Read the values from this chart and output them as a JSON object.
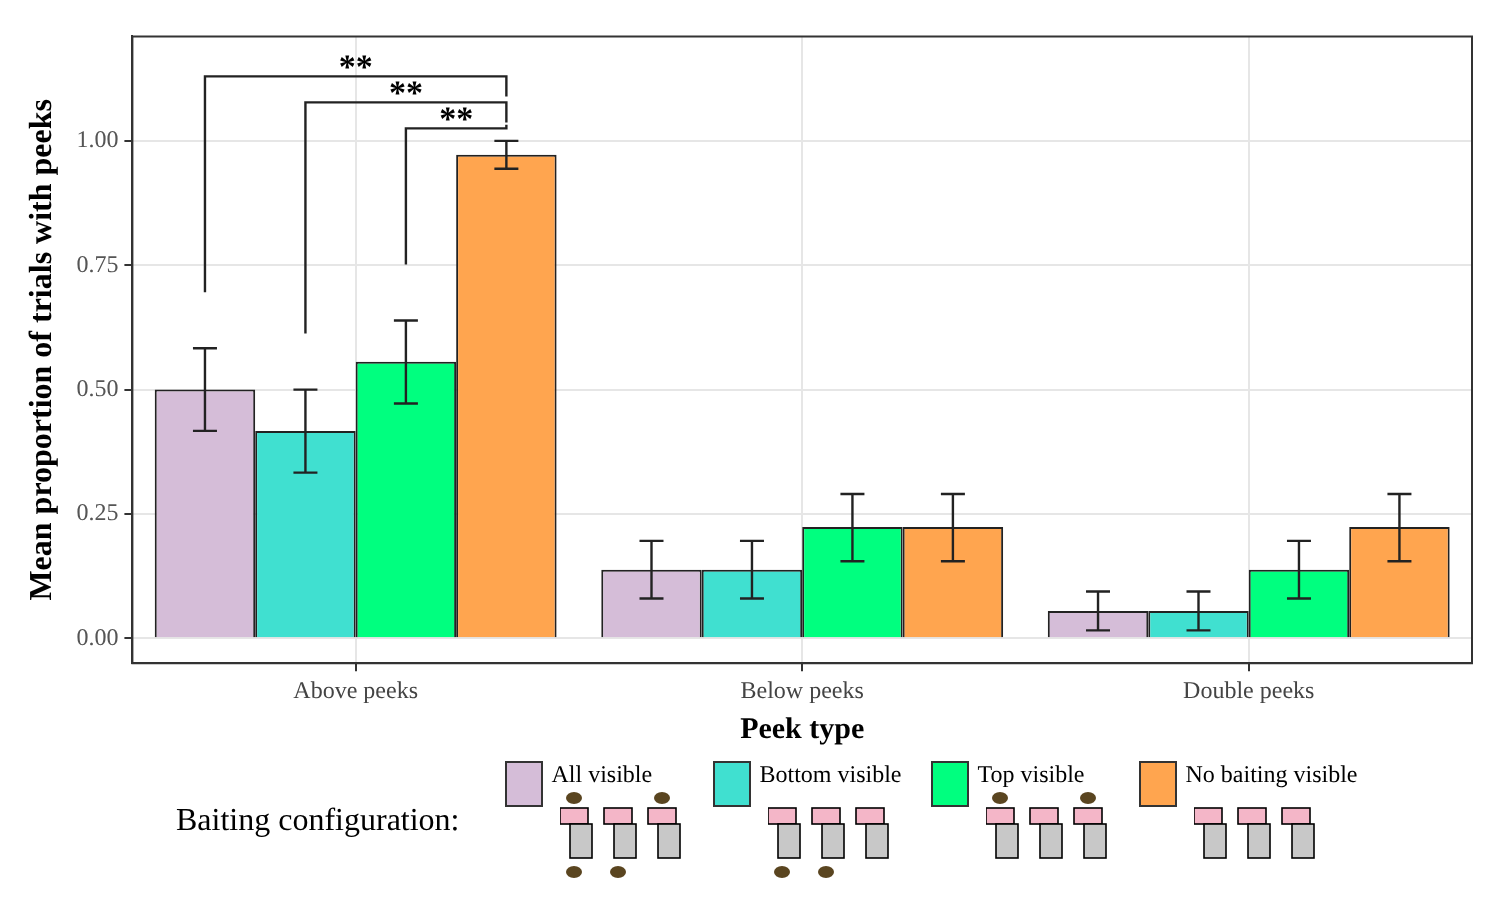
{
  "chart_data": {
    "type": "bar",
    "xlabel": "Peek type",
    "ylabel": "Mean proportion of trials with peeks",
    "legend_title": "Baiting configuration:",
    "categories": [
      "Above peeks",
      "Below peeks",
      "Double peeks"
    ],
    "series": [
      {
        "name": "All visible",
        "color": "#d5bdd8",
        "values": [
          0.5,
          0.138,
          0.055
        ],
        "errors": [
          [
            0.417,
            0.583
          ],
          [
            0.08,
            0.196
          ],
          [
            0.016,
            0.094
          ]
        ]
      },
      {
        "name": "Bottom visible",
        "color": "#40e0d0",
        "values": [
          0.417,
          0.138,
          0.055
        ],
        "errors": [
          [
            0.333,
            0.5
          ],
          [
            0.08,
            0.196
          ],
          [
            0.016,
            0.094
          ]
        ]
      },
      {
        "name": "Top visible",
        "color": "#00ff7f",
        "values": [
          0.556,
          0.224,
          0.138
        ],
        "errors": [
          [
            0.472,
            0.639
          ],
          [
            0.155,
            0.29
          ],
          [
            0.08,
            0.196
          ]
        ]
      },
      {
        "name": "No baiting visible",
        "color": "#ffa54f",
        "values": [
          0.972,
          0.224,
          0.224
        ],
        "errors": [
          [
            0.944,
            1.0
          ],
          [
            0.155,
            0.29
          ],
          [
            0.155,
            0.29
          ]
        ]
      }
    ],
    "ylim": [
      -0.05,
      1.21
    ],
    "yticks": [
      {
        "value": 0,
        "label": "0.00"
      },
      {
        "value": 0.25,
        "label": "0.25"
      },
      {
        "value": 0.5,
        "label": "0.50"
      },
      {
        "value": 0.75,
        "label": "0.75"
      },
      {
        "value": 1,
        "label": "1.00"
      }
    ],
    "grid": true,
    "legend": "bottom",
    "annotations": [
      "**",
      "**",
      "**"
    ]
  }
}
